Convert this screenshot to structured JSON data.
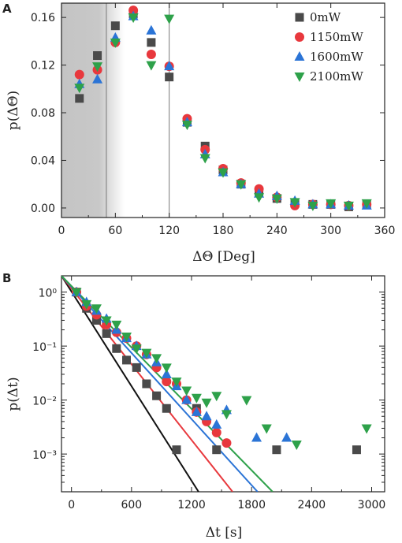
{
  "chart_data": [
    {
      "panel": "A",
      "type": "scatter",
      "xlabel": "ΔΘ [Deg]",
      "ylabel": "p(ΔΘ)",
      "xlim": [
        0,
        360
      ],
      "ylim": [
        -0.008,
        0.172
      ],
      "xticks": [
        "0",
        "60",
        "120",
        "180",
        "240",
        "300",
        "360"
      ],
      "yticks": [
        "0.00",
        "0.04",
        "0.08",
        "0.12",
        "0.16"
      ],
      "vlines": [
        50,
        120
      ],
      "shaded_region": [
        0,
        70
      ],
      "legend_position": "top-right",
      "x": [
        20,
        40,
        60,
        80,
        100,
        120,
        140,
        160,
        180,
        200,
        220,
        240,
        260,
        280,
        300,
        320,
        340
      ],
      "series": [
        {
          "name": "0mW",
          "color": "#4a4a4a",
          "marker": "square",
          "values": [
            0.092,
            0.128,
            0.153,
            0.163,
            0.139,
            0.11,
            0.072,
            0.052,
            0.032,
            0.02,
            0.013,
            0.008,
            0.004,
            0.003,
            0.003,
            0.001,
            0.003
          ]
        },
        {
          "name": "1150mW",
          "color": "#e8383d",
          "marker": "circle",
          "values": [
            0.112,
            0.116,
            0.139,
            0.166,
            0.129,
            0.119,
            0.075,
            0.049,
            0.033,
            0.021,
            0.016,
            0.009,
            0.002,
            0.003,
            0.003,
            0.002,
            0.003
          ]
        },
        {
          "name": "1600mW",
          "color": "#2b74d6",
          "marker": "triangle-up",
          "values": [
            0.104,
            0.108,
            0.143,
            0.161,
            0.149,
            0.119,
            0.072,
            0.045,
            0.03,
            0.02,
            0.012,
            0.01,
            0.006,
            0.003,
            0.003,
            0.002,
            0.002
          ]
        },
        {
          "name": "2100mW",
          "color": "#2ea14a",
          "marker": "triangle-down",
          "values": [
            0.101,
            0.119,
            0.139,
            0.16,
            0.12,
            0.159,
            0.07,
            0.042,
            0.03,
            0.02,
            0.009,
            0.008,
            0.005,
            0.002,
            0.004,
            0.002,
            0.004
          ]
        }
      ]
    },
    {
      "panel": "B",
      "type": "scatter",
      "xlabel": "Δt [s]",
      "ylabel": "p(Δt)",
      "xlim": [
        -100,
        3130
      ],
      "ylim": [
        0.0002,
        2
      ],
      "yscale": "log",
      "xticks": [
        "0",
        "600",
        "1200",
        "1800",
        "2400",
        "3000"
      ],
      "yticks": [
        "10⁻³",
        "10⁻²",
        "10⁻¹",
        "10⁰"
      ],
      "series": [
        {
          "name": "0mW",
          "color": "#4a4a4a",
          "marker": "square",
          "x": [
            50,
            150,
            250,
            350,
            450,
            550,
            650,
            750,
            850,
            950,
            1050,
            1250,
            1450,
            2050,
            2850
          ],
          "values": [
            1.0,
            0.5,
            0.3,
            0.17,
            0.09,
            0.055,
            0.04,
            0.02,
            0.012,
            0.007,
            0.0012,
            0.007,
            0.0012,
            0.0012,
            0.0012
          ],
          "fit": {
            "x": [
              -100,
              1270
            ],
            "y": [
              2.0,
              0.0002
            ]
          }
        },
        {
          "name": "1150mW",
          "color": "#e8383d",
          "marker": "circle",
          "x": [
            50,
            150,
            250,
            350,
            450,
            550,
            650,
            750,
            850,
            950,
            1050,
            1150,
            1250,
            1350,
            1450,
            1550
          ],
          "values": [
            1.0,
            0.55,
            0.38,
            0.25,
            0.18,
            0.14,
            0.1,
            0.07,
            0.04,
            0.022,
            0.02,
            0.01,
            0.006,
            0.004,
            0.0025,
            0.0016
          ],
          "fit": {
            "x": [
              -100,
              1610
            ],
            "y": [
              2.0,
              0.0002
            ]
          }
        },
        {
          "name": "1600mW",
          "color": "#2b74d6",
          "marker": "triangle-up",
          "x": [
            50,
            150,
            250,
            350,
            450,
            550,
            650,
            750,
            850,
            950,
            1050,
            1150,
            1250,
            1350,
            1450,
            1550,
            1850,
            2150
          ],
          "values": [
            1.0,
            0.65,
            0.45,
            0.32,
            0.2,
            0.14,
            0.1,
            0.07,
            0.05,
            0.03,
            0.018,
            0.01,
            0.006,
            0.005,
            0.0035,
            0.0065,
            0.002,
            0.002
          ],
          "fit": {
            "x": [
              -100,
              1860
            ],
            "y": [
              2.0,
              0.0002
            ]
          }
        },
        {
          "name": "2100mW",
          "color": "#2ea14a",
          "marker": "triangle-down",
          "x": [
            50,
            150,
            250,
            350,
            450,
            550,
            650,
            750,
            850,
            950,
            1050,
            1150,
            1250,
            1350,
            1450,
            1550,
            1750,
            1950,
            2250,
            2950
          ],
          "values": [
            1.0,
            0.6,
            0.5,
            0.3,
            0.25,
            0.15,
            0.09,
            0.075,
            0.06,
            0.04,
            0.022,
            0.015,
            0.011,
            0.009,
            0.012,
            0.0055,
            0.01,
            0.003,
            0.0015,
            0.003
          ],
          "fit": {
            "x": [
              -100,
              2010
            ],
            "y": [
              2.0,
              0.0002
            ]
          }
        }
      ]
    }
  ]
}
